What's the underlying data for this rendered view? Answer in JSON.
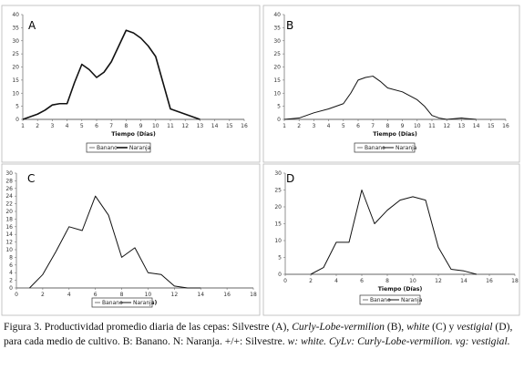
{
  "chart_data": [
    {
      "type": "line",
      "panel_label": "A",
      "xlabel": "Tiempo (Días)",
      "xlim": [
        1,
        16
      ],
      "ylim": [
        0,
        40
      ],
      "x_ticks": [
        "1",
        "2",
        "3",
        "4",
        "5",
        "6",
        "7",
        "8",
        "9",
        "10",
        "11",
        "12",
        "13",
        "14",
        "15",
        "16"
      ],
      "y_ticks": [
        "0",
        "5",
        "10",
        "15",
        "20",
        "25",
        "30",
        "35",
        "40"
      ],
      "legend": [
        "Banano",
        "Naranja"
      ],
      "legend_position": "bottom-center",
      "grid": false,
      "series": [
        {
          "name": "Banano",
          "x": [
            1,
            2,
            3,
            4,
            5,
            6,
            7,
            8,
            9,
            10,
            11,
            12,
            13,
            14,
            15,
            16
          ],
          "values": [
            0,
            0,
            0,
            0,
            0,
            0,
            0,
            0,
            0,
            0,
            0,
            0,
            0,
            0,
            0,
            0
          ]
        },
        {
          "name": "Naranja",
          "x": [
            1,
            1.5,
            2,
            2.5,
            3,
            3.5,
            4,
            4.5,
            5,
            5.5,
            6,
            6.5,
            7,
            7.5,
            8,
            8.5,
            9,
            9.5,
            10,
            10.5,
            11,
            11.5,
            12,
            12.5,
            13
          ],
          "values": [
            0,
            1,
            2,
            3.5,
            5.5,
            6,
            6,
            14,
            21,
            19,
            16,
            18,
            22,
            28,
            34,
            33,
            31,
            28,
            24,
            14,
            4,
            3,
            2,
            1,
            0
          ]
        }
      ]
    },
    {
      "type": "line",
      "panel_label": "B",
      "xlabel": "Tiempo (Días)",
      "xlim": [
        1,
        16
      ],
      "ylim": [
        0,
        40
      ],
      "x_ticks": [
        "1",
        "2",
        "3",
        "4",
        "5",
        "6",
        "7",
        "8",
        "9",
        "10",
        "11",
        "12",
        "13",
        "14",
        "15",
        "16"
      ],
      "y_ticks": [
        "0",
        "5",
        "10",
        "15",
        "20",
        "25",
        "30",
        "35",
        "40"
      ],
      "legend": [
        "Banano",
        "Naranja"
      ],
      "legend_position": "bottom-center",
      "grid": false,
      "series": [
        {
          "name": "Banano",
          "x": [
            1,
            2,
            3,
            4,
            5,
            6,
            7,
            8,
            9,
            10,
            11,
            12,
            13,
            14,
            15,
            16
          ],
          "values": [
            0,
            0,
            0,
            0,
            0,
            0,
            0,
            0,
            0,
            0,
            0,
            0,
            0,
            0,
            0,
            0
          ]
        },
        {
          "name": "Naranja",
          "x": [
            1,
            2,
            2.5,
            3,
            4,
            5,
            5.5,
            6,
            6.5,
            7,
            7.5,
            8,
            9,
            10,
            10.5,
            11,
            11.5,
            12,
            13,
            14
          ],
          "values": [
            0,
            0.5,
            1.5,
            2.5,
            4,
            6,
            10,
            15,
            16,
            16.5,
            14.5,
            12,
            10.5,
            7.5,
            5,
            1.5,
            0.5,
            0,
            0.5,
            0
          ]
        }
      ]
    },
    {
      "type": "line",
      "panel_label": "C",
      "xlabel": "Tiempo (Días)",
      "xlim": [
        0,
        18
      ],
      "ylim": [
        0,
        30
      ],
      "x_ticks": [
        "0",
        "2",
        "4",
        "6",
        "8",
        "10",
        "12",
        "14",
        "16",
        "18"
      ],
      "y_ticks": [
        "0",
        "2",
        "4",
        "6",
        "8",
        "10",
        "12",
        "14",
        "16",
        "18",
        "20",
        "22",
        "24",
        "26",
        "28",
        "30"
      ],
      "legend": [
        "Banano",
        "Naranja"
      ],
      "legend_position": "bottom-center",
      "grid": false,
      "series": [
        {
          "name": "Banano",
          "x": [
            0,
            2,
            4,
            6,
            8,
            10,
            12,
            14,
            16,
            18
          ],
          "values": [
            0,
            0,
            0,
            0,
            0,
            0,
            0,
            0,
            0,
            0
          ]
        },
        {
          "name": "Naranja",
          "x": [
            1,
            2,
            3,
            4,
            5,
            6,
            7,
            8,
            9,
            10,
            11,
            12,
            13,
            14
          ],
          "values": [
            0,
            3.5,
            9.5,
            16,
            15,
            24,
            19,
            8,
            10.5,
            4,
            3.5,
            0.5,
            0,
            0
          ]
        }
      ]
    },
    {
      "type": "line",
      "panel_label": "D",
      "xlabel": "Tiempo (Días)",
      "xlim": [
        0,
        18
      ],
      "ylim": [
        0,
        30
      ],
      "x_ticks": [
        "0",
        "2",
        "4",
        "6",
        "8",
        "10",
        "12",
        "14",
        "16",
        "18"
      ],
      "y_ticks": [
        "0",
        "5",
        "10",
        "15",
        "20",
        "25",
        "30"
      ],
      "legend": [
        "Banano",
        "Naranja"
      ],
      "legend_position": "bottom-center",
      "grid": false,
      "series": [
        {
          "name": "Banano",
          "x": [
            0,
            2,
            4,
            6,
            8,
            10,
            12,
            14,
            16,
            18
          ],
          "values": [
            0,
            0,
            0,
            0,
            0,
            0,
            0,
            0,
            0,
            0
          ]
        },
        {
          "name": "Naranja",
          "x": [
            2,
            3,
            4,
            5,
            6,
            7,
            8,
            9,
            10,
            11,
            12,
            13,
            14,
            15
          ],
          "values": [
            0,
            2,
            9.5,
            9.5,
            25,
            15,
            19,
            22,
            23,
            22,
            8,
            1.5,
            1,
            0
          ]
        }
      ]
    }
  ],
  "caption": {
    "prefix": "Figura 3. Productividad promedio diaria de las cepas: Silvestre (A), ",
    "strain_b": "Curly-Lobe-vermilion",
    "mid1": " (B), ",
    "strain_c": "white",
    "mid2": " (C) y ",
    "strain_d": "vestigial",
    "mid3": " (D), para cada medio de cultivo. B: Banano. N: Naranja. +/+: Silvestre. ",
    "abbr_w": "w: white. CyLv: Curly-Lobe-vermilion. vg: vestigial."
  },
  "colors": {
    "naranja_line": "#111111",
    "banano_line": "#555555",
    "axis": "#777777"
  }
}
